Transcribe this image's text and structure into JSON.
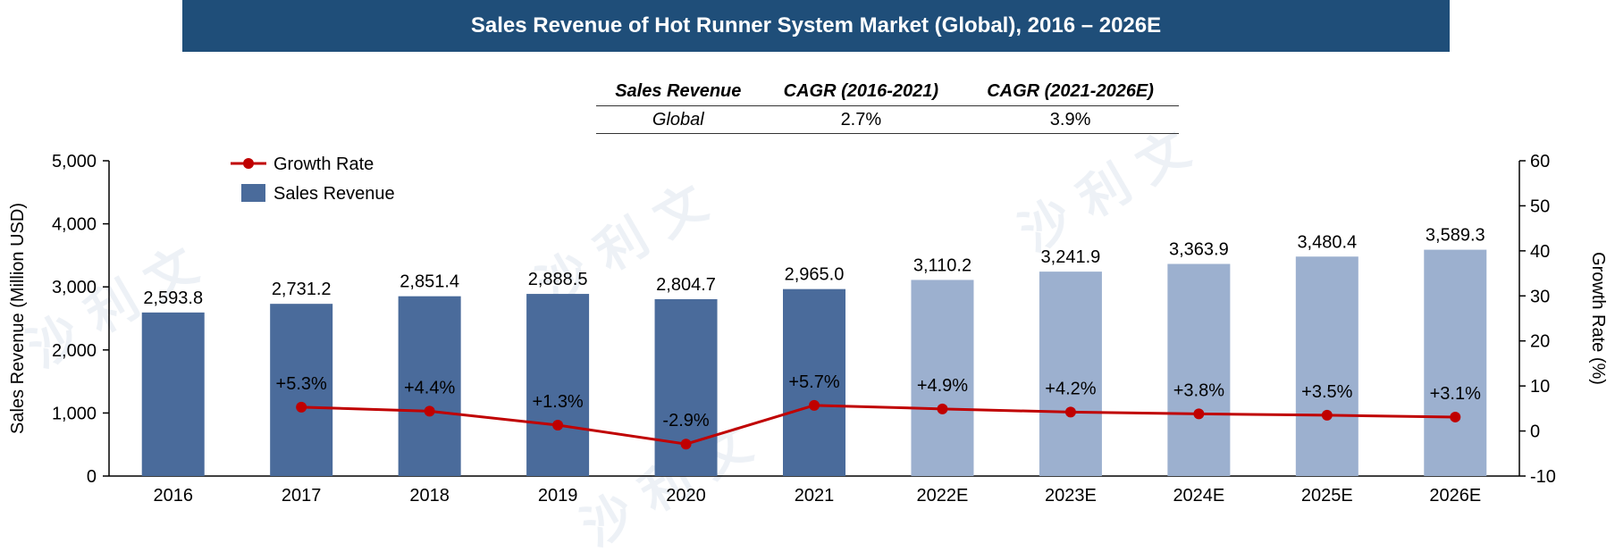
{
  "title": "Sales Revenue of Hot Runner System Market (Global), 2016 – 2026E",
  "cagr_table": {
    "headers": [
      "Sales Revenue",
      "CAGR (2016-2021)",
      "CAGR (2021-2026E)"
    ],
    "row": [
      "Global",
      "2.7%",
      "3.9%"
    ]
  },
  "chart_data": {
    "type": "bar",
    "categories": [
      "2016",
      "2017",
      "2018",
      "2019",
      "2020",
      "2021",
      "2022E",
      "2023E",
      "2024E",
      "2025E",
      "2026E"
    ],
    "series": [
      {
        "name": "Sales Revenue",
        "type": "bar",
        "axis": "left",
        "values": [
          2593.8,
          2731.2,
          2851.4,
          2888.5,
          2804.7,
          2965.0,
          3110.2,
          3241.9,
          3363.9,
          3480.4,
          3589.3
        ],
        "labels": [
          "2,593.8",
          "2,731.2",
          "2,851.4",
          "2,888.5",
          "2,804.7",
          "2,965.0",
          "3,110.2",
          "3,241.9",
          "3,363.9",
          "3,480.4",
          "3,589.3"
        ]
      },
      {
        "name": "Growth Rate",
        "type": "line",
        "axis": "right",
        "values": [
          null,
          5.3,
          4.4,
          1.3,
          -2.9,
          5.7,
          4.9,
          4.2,
          3.8,
          3.5,
          3.1
        ],
        "labels": [
          "",
          "+5.3%",
          "+4.4%",
          "+1.3%",
          "-2.9%",
          "+5.7%",
          "+4.9%",
          "+4.2%",
          "+3.8%",
          "+3.5%",
          "+3.1%"
        ]
      }
    ],
    "ylabel": "Sales Revenue (Million USD)",
    "y2label": "Growth Rate (%)",
    "ylim": [
      0,
      5000
    ],
    "y2lim": [
      -10,
      60
    ],
    "yticks": [
      "0",
      "1,000",
      "2,000",
      "3,000",
      "4,000",
      "5,000"
    ],
    "y2ticks": [
      "-10",
      "0",
      "10",
      "20",
      "30",
      "40",
      "50",
      "60"
    ],
    "legend_position": "top-left",
    "colors": {
      "bar_actual": "#4a6b9b",
      "bar_forecast": "#9cb0cf",
      "line": "#c00000",
      "title_bg": "#1f4e79"
    }
  }
}
